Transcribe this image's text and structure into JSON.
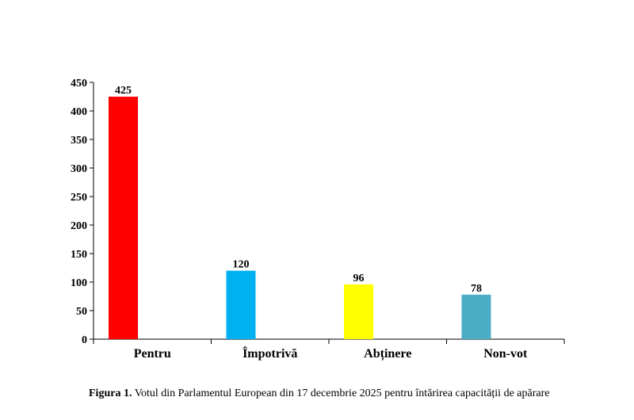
{
  "chart_data": {
    "type": "bar",
    "categories": [
      "Pentru",
      "Împotrivă",
      "Abținere",
      "Non-vot"
    ],
    "values": [
      425,
      120,
      96,
      78
    ],
    "value_labels": [
      "425",
      "120",
      "96",
      "78"
    ],
    "colors": [
      "#ff0000",
      "#00b0f0",
      "#ffff00",
      "#4bacc6"
    ],
    "ylim": [
      0,
      450
    ],
    "yticks": [
      "0",
      "50",
      "100",
      "150",
      "200",
      "250",
      "300",
      "350",
      "400",
      "450"
    ],
    "grid": false,
    "legend": "none"
  },
  "caption": {
    "label": "Figura 1.",
    "text": "Votul din Parlamentul European din 17 decembrie 2025 pentru întărirea capacității de apărare"
  }
}
